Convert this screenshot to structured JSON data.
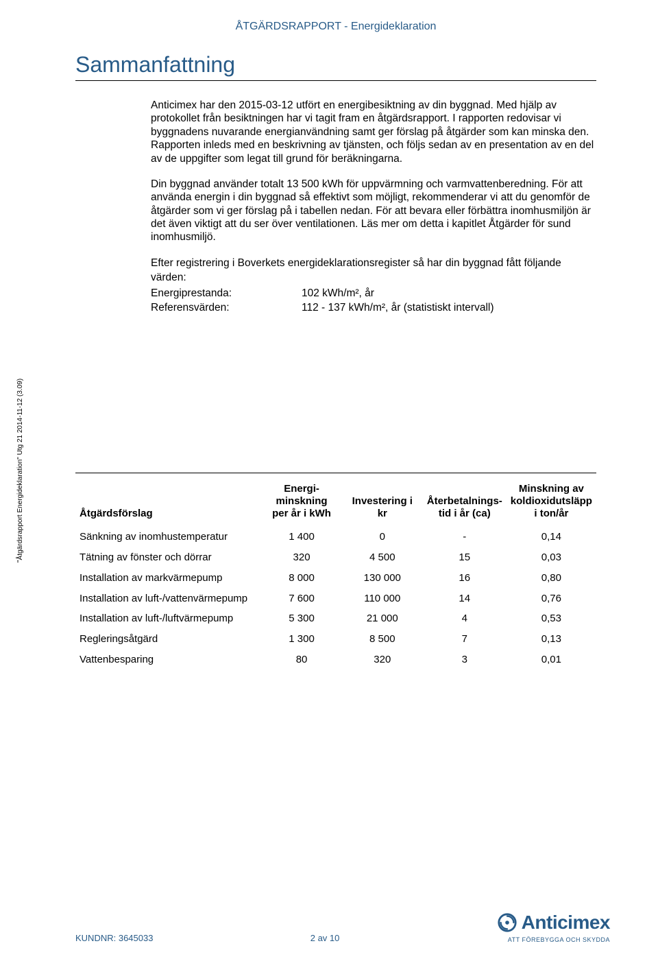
{
  "doc_header": "ÅTGÄRDSRAPPORT - Energideklaration",
  "title": "Sammanfattning",
  "paragraphs": {
    "p1": "Anticimex har den 2015-03-12 utfört en energibesiktning av din byggnad. Med hjälp av protokollet från besiktningen har vi tagit fram en åtgärdsrapport. I rapporten redovisar vi byggnadens nuvarande energianvändning samt ger förslag på åtgärder som kan minska den. Rapporten inleds med en beskrivning av tjänsten, och följs sedan av en presentation av en del av de uppgifter som legat till grund för beräkningarna.",
    "p2": "Din byggnad använder totalt 13 500 kWh för uppvärmning och varmvattenberedning. För att använda energin i din byggnad så effektivt som möjligt, rekommenderar vi att du genomför de åtgärder som vi ger förslag på i tabellen nedan. För att bevara eller förbättra inomhusmiljön är det även viktigt att du ser över ventilationen. Läs mer om detta i kapitlet Åtgärder för sund inomhusmiljö.",
    "kv_preamble": "Efter registrering i Boverkets energideklarationsregister så har din byggnad fått följande värden:"
  },
  "kv": {
    "energiprestanda_label": "Energiprestanda:",
    "energiprestanda_value": "102 kWh/m², år",
    "referens_label": "Referensvärden:",
    "referens_value": "112 - 137 kWh/m², år (statistiskt intervall)"
  },
  "vertical_label": "\"Åtgärdsrapport Energideklaration\" Utg 21 2014-11-12 (3.09)",
  "table": {
    "headers": {
      "col1": "Åtgärdsförslag",
      "col2a": "Energi-",
      "col2b": "minskning",
      "col2c": "per år i kWh",
      "col3": "Investering i kr",
      "col4a": "Återbetalnings-",
      "col4b": "tid i år (ca)",
      "col5a": "Minskning av",
      "col5b": "koldioxidutsläpp",
      "col5c": "i ton/år"
    },
    "rows": [
      {
        "name": "Sänkning av inomhustemperatur",
        "energy": "1 400",
        "invest": "0",
        "payback": "-",
        "co2": "0,14"
      },
      {
        "name": "Tätning av fönster och dörrar",
        "energy": "320",
        "invest": "4 500",
        "payback": "15",
        "co2": "0,03"
      },
      {
        "name": "Installation av markvärmepump",
        "energy": "8 000",
        "invest": "130 000",
        "payback": "16",
        "co2": "0,80"
      },
      {
        "name": "Installation av luft-/vattenvärmepump",
        "energy": "7 600",
        "invest": "110 000",
        "payback": "14",
        "co2": "0,76"
      },
      {
        "name": "Installation av luft-/luftvärmepump",
        "energy": "5 300",
        "invest": "21 000",
        "payback": "4",
        "co2": "0,53"
      },
      {
        "name": "Regleringsåtgärd",
        "energy": "1 300",
        "invest": "8 500",
        "payback": "7",
        "co2": "0,13"
      },
      {
        "name": "Vattenbesparing",
        "energy": "80",
        "invest": "320",
        "payback": "3",
        "co2": "0,01"
      }
    ]
  },
  "footer": {
    "customer": "KUNDNR: 3645033",
    "page": "2 av 10",
    "logo_word": "Anticimex",
    "logo_tag": "ATT FÖREBYGGA OCH SKYDDA"
  },
  "colors": {
    "primary": "#285b88",
    "text": "#000000",
    "bg": "#ffffff"
  }
}
